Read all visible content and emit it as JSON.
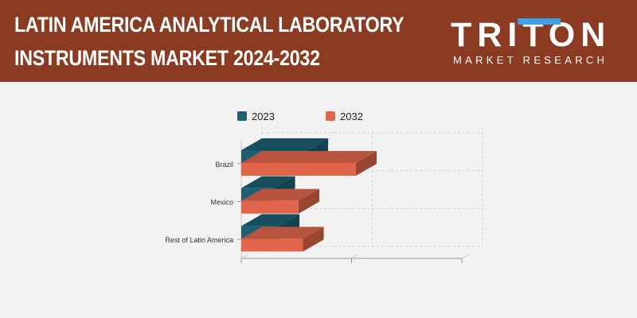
{
  "header": {
    "title_line1": "LATIN AMERICA ANALYTICAL LABORATORY",
    "title_line2": "INSTRUMENTS MARKET 2024-2032",
    "bg_color": "#8b3b22"
  },
  "logo": {
    "word": "TRITON",
    "subtitle": "MARKET RESEARCH",
    "accent_color": "#3aa0e8"
  },
  "chart_data": {
    "type": "bar",
    "orientation": "horizontal",
    "style": "3d",
    "categories": [
      "Brazil",
      "Mexico",
      "Rest of Latin America"
    ],
    "series": [
      {
        "name": "2023",
        "values": [
          30,
          15,
          17
        ],
        "color": "#1c5f73"
      },
      {
        "name": "2032",
        "values": [
          52,
          26,
          28
        ],
        "color": "#e0654a"
      }
    ],
    "xlim": [
      0,
      100
    ],
    "tick_labels_shown": false,
    "grid": true,
    "legend": "top"
  }
}
